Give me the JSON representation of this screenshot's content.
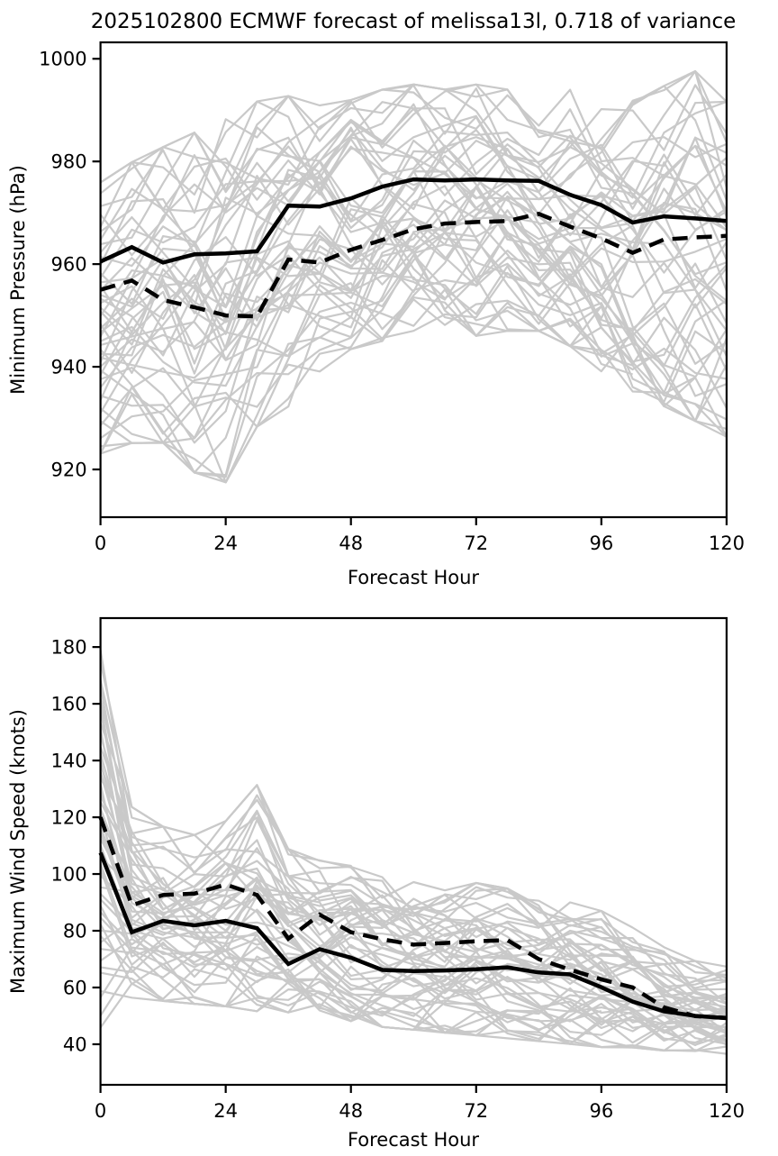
{
  "title": "2025102800 ECMWF forecast of melissa13l, 0.718 of variance",
  "style": {
    "background": "#ffffff",
    "ensemble_color": "#c9c9c9",
    "main_line_color": "#000000",
    "axis_color": "#000000"
  },
  "chart_data": [
    {
      "type": "line",
      "name": "minimum-pressure",
      "xlabel": "Forecast Hour",
      "ylabel": "Minimum Pressure (hPa)",
      "x": [
        0,
        6,
        12,
        18,
        24,
        30,
        36,
        42,
        48,
        54,
        60,
        66,
        72,
        78,
        84,
        90,
        96,
        102,
        108,
        114,
        120
      ],
      "xticks": [
        0,
        24,
        48,
        72,
        96,
        120
      ],
      "yticks": [
        920,
        940,
        960,
        980,
        1000
      ],
      "xlim": [
        0,
        120
      ],
      "ylim": [
        910.7,
        1003.2
      ],
      "legend": "none",
      "grid": false,
      "series": [
        {
          "name": "solid",
          "style": "solid",
          "color": "#000000",
          "values": [
            960.5,
            963.3,
            960.3,
            961.9,
            962.1,
            962.5,
            971.4,
            971.2,
            972.8,
            975.1,
            976.5,
            976.3,
            976.5,
            976.3,
            976.2,
            973.5,
            971.5,
            968.1,
            969.3,
            968.9,
            968.4
          ]
        },
        {
          "name": "dashed",
          "style": "dashed",
          "color": "#000000",
          "values": [
            955.0,
            956.8,
            953.0,
            951.6,
            950.0,
            949.8,
            960.9,
            960.3,
            962.8,
            964.7,
            966.8,
            967.9,
            968.2,
            968.4,
            969.8,
            967.3,
            965.0,
            962.2,
            964.8,
            965.2,
            965.5
          ]
        }
      ],
      "ensemble": {
        "name": "ensemble-members",
        "color": "#c9c9c9",
        "count": 50,
        "seed": 29,
        "lower": [
          922,
          924,
          924,
          918,
          916,
          927,
          931,
          938,
          941,
          944,
          946,
          946,
          945,
          946,
          946,
          943,
          938,
          934,
          931,
          928,
          925
        ],
        "upper": [
          977,
          981,
          984,
          987,
          991,
          993,
          994,
          992,
          993,
          995,
          996,
          995,
          996,
          995,
          996,
          995,
          994,
          993,
          996,
          999,
          993
        ]
      }
    },
    {
      "type": "line",
      "name": "maximum-wind-speed",
      "xlabel": "Forecast Hour",
      "ylabel": "Maximum Wind Speed (knots)",
      "x": [
        0,
        6,
        12,
        18,
        24,
        30,
        36,
        42,
        48,
        54,
        60,
        66,
        72,
        78,
        84,
        90,
        96,
        102,
        108,
        114,
        120
      ],
      "xticks": [
        0,
        24,
        48,
        72,
        96,
        120
      ],
      "yticks": [
        40,
        60,
        80,
        100,
        120,
        140,
        160,
        180
      ],
      "xlim": [
        0,
        120
      ],
      "ylim": [
        25.7,
        190.2
      ],
      "legend": "none",
      "grid": false,
      "series": [
        {
          "name": "solid",
          "style": "solid",
          "color": "#000000",
          "values": [
            107.5,
            79.5,
            83.5,
            81.9,
            83.5,
            80.9,
            68.3,
            73.5,
            70.5,
            66.2,
            65.8,
            66.0,
            66.4,
            67.1,
            65.3,
            64.6,
            60.1,
            55.0,
            51.6,
            50.0,
            49.2
          ]
        },
        {
          "name": "dashed",
          "style": "dashed",
          "color": "#000000",
          "values": [
            120.0,
            89.0,
            92.6,
            93.1,
            96.3,
            92.6,
            77.2,
            85.7,
            79.5,
            77.0,
            75.1,
            75.7,
            76.3,
            76.7,
            70.0,
            66.3,
            62.9,
            60.0,
            53.0,
            49.9,
            49.3
          ]
        }
      ],
      "ensemble": {
        "name": "ensemble-members",
        "color": "#c9c9c9",
        "count": 50,
        "seed": 113,
        "lower": [
          43,
          55,
          54,
          53,
          52,
          50,
          50,
          48,
          47,
          45,
          44,
          43,
          42,
          41,
          40,
          39,
          38,
          38,
          37,
          36,
          36
        ],
        "upper": [
          187,
          125,
          118,
          115,
          120,
          133,
          110,
          106,
          104,
          100,
          100,
          97,
          98,
          96,
          95,
          93,
          88,
          82,
          75,
          70,
          68
        ]
      }
    }
  ]
}
